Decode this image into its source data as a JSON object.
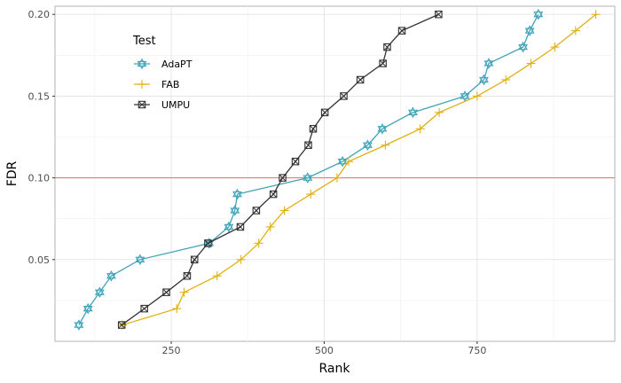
{
  "chart_data": {
    "type": "line",
    "xlabel": "Rank",
    "ylabel": "FDR",
    "xlim": [
      60,
      975
    ],
    "ylim": [
      0.0,
      0.205
    ],
    "x_ticks": [
      250,
      500,
      750
    ],
    "x_tick_labels": [
      "250",
      "500",
      "750"
    ],
    "y_ticks": [
      0.05,
      0.1,
      0.15,
      0.2
    ],
    "y_tick_labels": [
      "0.05",
      "0.10",
      "0.15",
      "0.20"
    ],
    "grid": true,
    "legend": {
      "title": "Test",
      "position": "top-left-inside"
    },
    "reference_line": {
      "y": 0.1,
      "color": "#e07b7b"
    },
    "series": [
      {
        "name": "AdaPT",
        "color": "#3fa4b7",
        "marker": "star-of-david",
        "x": [
          99,
          114,
          133,
          152,
          199,
          312,
          344,
          354,
          358,
          473,
          530,
          571,
          595,
          645,
          730,
          761,
          769,
          825,
          836,
          850
        ],
        "y": [
          0.01,
          0.02,
          0.03,
          0.04,
          0.05,
          0.06,
          0.07,
          0.08,
          0.09,
          0.1,
          0.11,
          0.12,
          0.13,
          0.14,
          0.15,
          0.16,
          0.17,
          0.18,
          0.19,
          0.2
        ]
      },
      {
        "name": "FAB",
        "color": "#e0b010",
        "marker": "plus",
        "x": [
          170,
          259,
          271,
          325,
          364,
          393,
          412,
          435,
          478,
          521,
          540,
          600,
          657,
          688,
          750,
          797,
          838,
          877,
          911,
          944
        ],
        "y": [
          0.01,
          0.02,
          0.03,
          0.04,
          0.05,
          0.06,
          0.07,
          0.08,
          0.09,
          0.1,
          0.11,
          0.12,
          0.13,
          0.14,
          0.15,
          0.16,
          0.17,
          0.18,
          0.19,
          0.2
        ]
      },
      {
        "name": "UMPU",
        "color": "#333333",
        "marker": "boxed-x",
        "x": [
          169,
          206,
          242,
          276,
          288,
          310,
          363,
          389,
          417,
          432,
          453,
          474,
          482,
          501,
          532,
          559,
          596,
          603,
          627,
          687
        ],
        "y": [
          0.01,
          0.02,
          0.03,
          0.04,
          0.05,
          0.06,
          0.07,
          0.08,
          0.09,
          0.1,
          0.11,
          0.12,
          0.13,
          0.14,
          0.15,
          0.16,
          0.17,
          0.18,
          0.19,
          0.2
        ]
      }
    ]
  }
}
